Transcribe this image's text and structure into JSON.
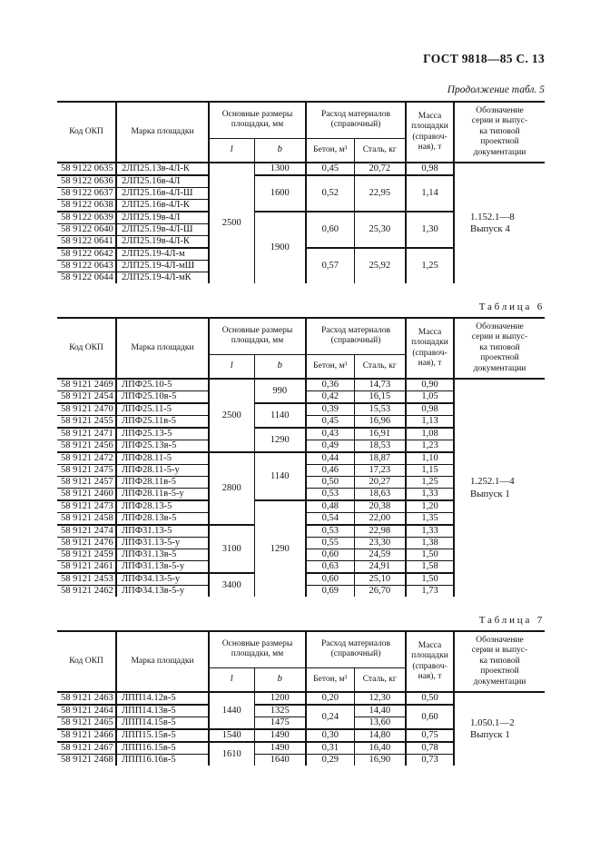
{
  "page_header": "ГОСТ 9818—85 С. 13",
  "table_header": {
    "col_code": "Код ОКП",
    "col_mark": "Марка площадки",
    "col_sizes": "Основные размеры\nплощадки, мм",
    "col_l": "l",
    "col_b": "b",
    "col_materials": "Расход материалов\n(справочный)",
    "col_beton": "Бетон, м³",
    "col_steel": "Сталь, кг",
    "col_mass": "Масса\nплощадки\n(справоч-\nная), т",
    "col_doc": "Обозначение\nсерии и выпус-\nка типовой\nпроектной\nдокументации"
  },
  "tables": [
    {
      "caption": "Продолжение табл. 5",
      "doc": "1.152.1—8\nВыпуск 4",
      "thick_after": [
        0,
        3,
        6
      ],
      "rows": [
        [
          "58 9122 0635",
          "2ЛП25.13в-4Л-К",
          {
            "v": "2500",
            "rs": 10
          },
          "1300",
          "0,45",
          "20,72",
          "0,98",
          {
            "v": "1.152.1—8\nВыпуск 4",
            "rs": 10
          }
        ],
        [
          "58 9122 0636",
          "2ЛП25.16в-4Л",
          null,
          {
            "v": "1600",
            "rs": 3
          },
          {
            "v": "0,52",
            "rs": 3
          },
          {
            "v": "22,95",
            "rs": 3
          },
          {
            "v": "1,14",
            "rs": 3
          },
          null
        ],
        [
          "58 9122 0637",
          "2ЛП25.16в-4Л-Ш",
          null,
          null,
          null,
          null,
          null,
          null
        ],
        [
          "58 9122 0638",
          "2ЛП25.16в-4Л-К",
          null,
          null,
          null,
          null,
          null,
          null
        ],
        [
          "58 9122 0639",
          "2ЛП25.19в-4Л",
          null,
          {
            "v": "1900",
            "rs": 6
          },
          {
            "v": "0,60",
            "rs": 3
          },
          {
            "v": "25,30",
            "rs": 3
          },
          {
            "v": "1,30",
            "rs": 3
          },
          null
        ],
        [
          "58 9122 0640",
          "2ЛП25.19в-4Л-Ш",
          null,
          null,
          null,
          null,
          null,
          null
        ],
        [
          "58 9122 0641",
          "2ЛП25.19в-4Л-К",
          null,
          null,
          null,
          null,
          null,
          null
        ],
        [
          "58 9122 0642",
          "2ЛП25.19-4Л-м",
          null,
          null,
          {
            "v": "0,57",
            "rs": 3
          },
          {
            "v": "25,92",
            "rs": 3
          },
          {
            "v": "1,25",
            "rs": 3
          },
          null
        ],
        [
          "58 9122 0643",
          "2ЛП25.19-4Л-мШ",
          null,
          null,
          null,
          null,
          null,
          null
        ],
        [
          "58 9122 0644",
          "2ЛП25.19-4Л-мК",
          null,
          null,
          null,
          null,
          null,
          null
        ]
      ]
    },
    {
      "caption": "Таблица 6",
      "doc": "1.252.1—4\nВыпуск 1",
      "thick_after": [
        1,
        3,
        5,
        9,
        11,
        15
      ],
      "rows": [
        [
          "58 9121 2469",
          "ЛПФ25.10-5",
          {
            "v": "2500",
            "rs": 6
          },
          {
            "v": "990",
            "rs": 2
          },
          "0,36",
          "14,73",
          "0,90",
          {
            "v": "1.252.1—4\nВыпуск 1",
            "rs": 18
          }
        ],
        [
          "58 9121 2454",
          "ЛПФ25.10в-5",
          null,
          null,
          "0,42",
          "16,15",
          "1,05",
          null
        ],
        [
          "58 9121 2470",
          "ЛПФ25.11-5",
          null,
          {
            "v": "1140",
            "rs": 2
          },
          "0,39",
          "15,53",
          "0,98",
          null
        ],
        [
          "58 9121 2455",
          "ЛПФ25.11в-5",
          null,
          null,
          "0,45",
          "16,96",
          "1,13",
          null
        ],
        [
          "58 9121 2471",
          "ЛПФ25.13-5",
          null,
          {
            "v": "1290",
            "rs": 2
          },
          "0,43",
          "16,91",
          "1,08",
          null
        ],
        [
          "58 9121 2456",
          "ЛПФ25.13в-5",
          null,
          null,
          "0,49",
          "18,53",
          "1,23",
          null
        ],
        [
          "58 9121 2472",
          "ЛПФ28.11-5",
          {
            "v": "2800",
            "rs": 6
          },
          {
            "v": "1140",
            "rs": 4
          },
          "0,44",
          "18,87",
          "1,10",
          null
        ],
        [
          "58 9121 2475",
          "ЛПФ28.11-5-у",
          null,
          null,
          "0,46",
          "17,23",
          "1,15",
          null
        ],
        [
          "58 9121 2457",
          "ЛПФ28.11в-5",
          null,
          null,
          "0,50",
          "20,27",
          "1,25",
          null
        ],
        [
          "58 9121 2460",
          "ЛПФ28.11в-5-у",
          null,
          null,
          "0,53",
          "18,63",
          "1,33",
          null
        ],
        [
          "58 9121 2473",
          "ЛПФ28.13-5",
          null,
          {
            "v": "1290",
            "rs": 8
          },
          "0,48",
          "20,38",
          "1,20",
          null
        ],
        [
          "58 9121 2458",
          "ЛПФ28.13в-5",
          null,
          null,
          "0,54",
          "22,00",
          "1,35",
          null
        ],
        [
          "58 9121 2474",
          "ЛПФ31.13-5",
          {
            "v": "3100",
            "rs": 4
          },
          null,
          "0,53",
          "22,98",
          "1,33",
          null
        ],
        [
          "58 9121 2476",
          "ЛПФ31.13-5-у",
          null,
          null,
          "0,55",
          "23,30",
          "1,38",
          null
        ],
        [
          "58 9121 2459",
          "ЛПФ31.13в-5",
          null,
          null,
          "0,60",
          "24,59",
          "1,50",
          null
        ],
        [
          "58 9121 2461",
          "ЛПФ31.13в-5-у",
          null,
          null,
          "0,63",
          "24,91",
          "1,58",
          null
        ],
        [
          "58 9121 2453",
          "ЛПФ34.13-5-у",
          {
            "v": "3400",
            "rs": 2
          },
          null,
          "0,60",
          "25,10",
          "1,50",
          null
        ],
        [
          "58 9121 2462",
          "ЛПФ34.13в-5-у",
          null,
          null,
          "0,69",
          "26,70",
          "1,73",
          null
        ]
      ]
    },
    {
      "caption": "Таблица 7",
      "doc": "1.050.1—2\nВыпуск 1",
      "thick_after": [
        0,
        2,
        3
      ],
      "rows": [
        [
          "58 9121 2463",
          "ЛПП14.12в-5",
          {
            "v": "1440",
            "rs": 3
          },
          "1200",
          "0,20",
          "12,30",
          "0,50",
          {
            "v": "1.050.1—2\nВыпуск 1",
            "rs": 6
          }
        ],
        [
          "58 9121 2464",
          "ЛПП14.13в-5",
          null,
          "1325",
          {
            "v": "0,24",
            "rs": 2
          },
          "14,40",
          {
            "v": "0,60",
            "rs": 2
          },
          null
        ],
        [
          "58 9121 2465",
          "ЛПП14.15в-5",
          null,
          "1475",
          null,
          "13,60",
          null,
          null
        ],
        [
          "58 9121 2466",
          "ЛПП15.15в-5",
          "1540",
          "1490",
          "0,30",
          "14,80",
          "0,75",
          null
        ],
        [
          "58 9121 2467",
          "ЛПП16.15в-5",
          {
            "v": "1610",
            "rs": 2
          },
          "1490",
          "0,31",
          "16,40",
          "0,78",
          null
        ],
        [
          "58 9121 2468",
          "ЛПП16.16в-5",
          null,
          "1640",
          "0,29",
          "16,90",
          "0,73",
          null
        ]
      ]
    }
  ]
}
